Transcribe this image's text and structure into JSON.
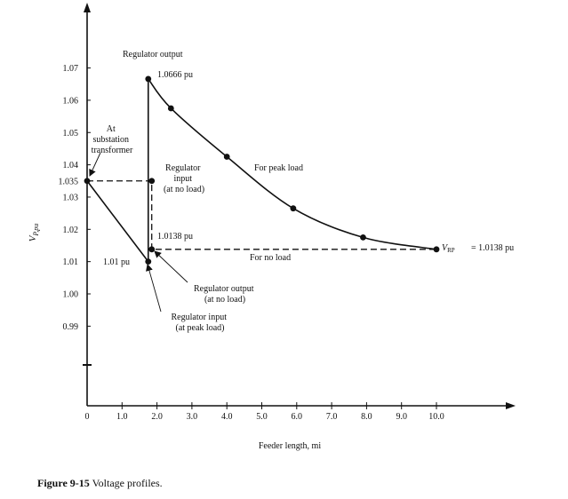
{
  "chart_data": {
    "type": "line",
    "title": "",
    "xlabel": "Feeder length, mi",
    "ylabel": "V P,pu",
    "xlim": [
      0,
      10.5
    ],
    "ylim": [
      0.96,
      1.08
    ],
    "x_ticks": [
      "0",
      "1.0",
      "2.0",
      "3.0",
      "4.0",
      "5.0",
      "6.0",
      "7.0",
      "8.0",
      "9.0",
      "10.0"
    ],
    "y_ticks": [
      "0.99",
      "1.00",
      "1.01",
      "1.02",
      "1.03",
      "1.035",
      "1.04",
      "1.05",
      "1.06",
      "1.07"
    ],
    "y_tick_values": [
      0.99,
      1.0,
      1.01,
      1.02,
      1.03,
      1.035,
      1.04,
      1.05,
      1.06,
      1.07
    ],
    "grid": false,
    "series": [
      {
        "style": "solid",
        "points": [
          {
            "x": 0,
            "y": 1.035
          },
          {
            "x": 1.75,
            "y": 1.01
          },
          {
            "x": 1.75,
            "y": 1.0666
          },
          {
            "x": 2.4,
            "y": 1.0575
          },
          {
            "x": 4.0,
            "y": 1.0425
          },
          {
            "x": 5.9,
            "y": 1.0265
          },
          {
            "x": 7.9,
            "y": 1.0175
          },
          {
            "x": 10.0,
            "y": 1.0138
          }
        ],
        "dots": [
          {
            "x": 0,
            "y": 1.035
          },
          {
            "x": 1.75,
            "y": 1.01
          },
          {
            "x": 1.75,
            "y": 1.0666
          },
          {
            "x": 2.4,
            "y": 1.0575
          },
          {
            "x": 4.0,
            "y": 1.0425
          },
          {
            "x": 5.9,
            "y": 1.0265
          },
          {
            "x": 7.9,
            "y": 1.0175
          },
          {
            "x": 10.0,
            "y": 1.0138
          }
        ]
      },
      {
        "style": "dashed",
        "points": [
          {
            "x": 0,
            "y": 1.035
          },
          {
            "x": 1.75,
            "y": 1.035
          },
          {
            "x": 1.85,
            "y": 1.035
          },
          {
            "x": 1.85,
            "y": 1.0138
          },
          {
            "x": 10.0,
            "y": 1.0138
          }
        ],
        "dots": [
          {
            "x": 1.85,
            "y": 1.035
          },
          {
            "x": 1.85,
            "y": 1.0138
          }
        ]
      }
    ],
    "annotations": [
      {
        "id": "reg-output",
        "lines": [
          "Regulator output"
        ]
      },
      {
        "id": "v-10666",
        "lines": [
          "1.0666 pu"
        ]
      },
      {
        "id": "substation",
        "lines": [
          "At",
          "substation",
          "transformer"
        ]
      },
      {
        "id": "reg-input-noload",
        "lines": [
          "Regulator",
          "input",
          "(at no load)"
        ]
      },
      {
        "id": "peak-load",
        "lines": [
          "For peak load"
        ]
      },
      {
        "id": "v-10138",
        "lines": [
          "1.0138 pu"
        ]
      },
      {
        "id": "v-101",
        "lines": [
          "1.01 pu"
        ]
      },
      {
        "id": "no-load",
        "lines": [
          "For no load"
        ]
      },
      {
        "id": "vrp-eq",
        "lines": [
          "= 1.0138 pu"
        ]
      },
      {
        "id": "reg-output-noload",
        "lines": [
          "Regulator output",
          "(at no load)"
        ]
      },
      {
        "id": "reg-input-peak",
        "lines": [
          "Regulator input",
          "(at peak load)"
        ]
      }
    ],
    "vrp_label": {
      "main": "V",
      "sub": "RP"
    }
  },
  "caption": {
    "label": "Figure 9-15",
    "text": " Voltage profiles."
  }
}
